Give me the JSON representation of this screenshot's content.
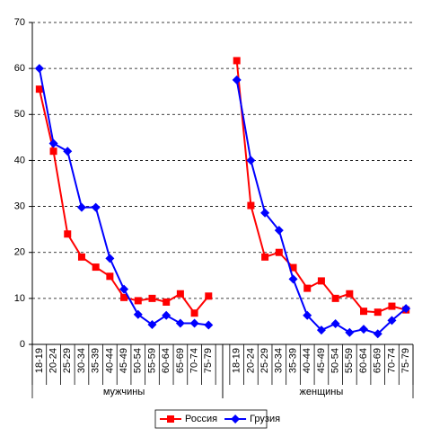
{
  "chart_data": {
    "type": "line",
    "categories": [
      "18-19",
      "20-24",
      "25-29",
      "30-34",
      "35-39",
      "40-44",
      "45-49",
      "50-54",
      "55-59",
      "60-64",
      "65-69",
      "70-74",
      "75-79",
      null,
      "18-19",
      "20-24",
      "25-29",
      "30-34",
      "35-39",
      "40-44",
      "45-49",
      "50-54",
      "55-59",
      "60-64",
      "65-69",
      "70-74",
      "75-79"
    ],
    "groups": [
      {
        "name": "мужчины",
        "from": 0,
        "to": 12
      },
      {
        "name": "женщины",
        "from": 14,
        "to": 26
      }
    ],
    "series": [
      {
        "name": "Россия",
        "color": "#ff0000",
        "marker": "square",
        "values": [
          55.5,
          42,
          24,
          19,
          16.8,
          14.8,
          10.2,
          9.5,
          10,
          9.2,
          11,
          6.8,
          10.5,
          null,
          61.7,
          30.2,
          19,
          20,
          16.7,
          12.2,
          13.8,
          10,
          11,
          7.2,
          7,
          8.3,
          7.5
        ]
      },
      {
        "name": "Грузия",
        "color": "#0000ff",
        "marker": "diamond",
        "values": [
          60,
          43.7,
          42,
          29.8,
          29.8,
          18.7,
          12,
          6.5,
          4.3,
          6.3,
          4.6,
          4.6,
          4.2,
          null,
          57.5,
          40,
          28.6,
          24.8,
          14.2,
          6.3,
          3.1,
          4.5,
          2.6,
          3.3,
          2.3,
          5.2,
          7.8
        ]
      }
    ],
    "ylim": [
      0,
      70
    ],
    "yticks": [
      0,
      10,
      20,
      30,
      40,
      50,
      60,
      70
    ],
    "grid": true,
    "legend": "bottom"
  }
}
